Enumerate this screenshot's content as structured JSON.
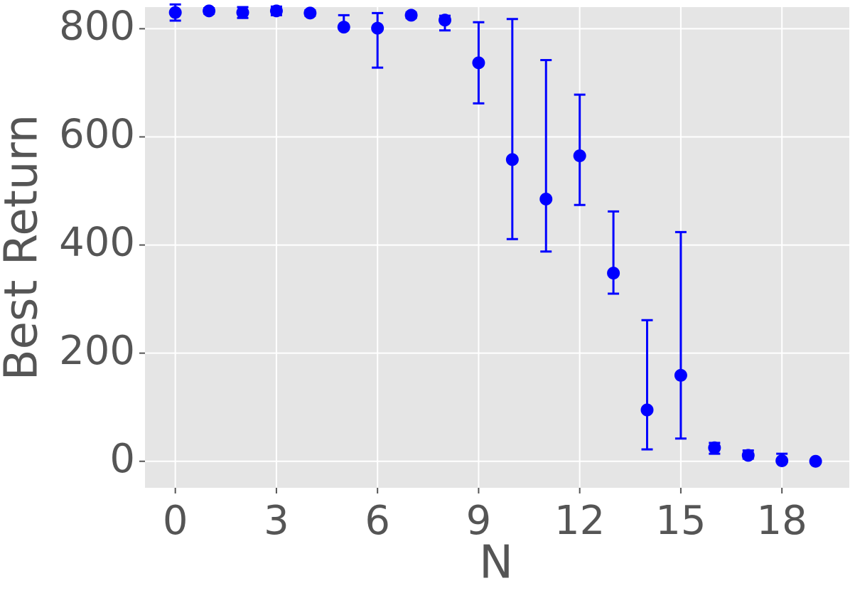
{
  "chart_data": {
    "type": "errorbar",
    "xlabel": "N",
    "ylabel": "Best Return",
    "x": [
      0,
      1,
      2,
      3,
      4,
      5,
      6,
      7,
      8,
      9,
      10,
      11,
      12,
      13,
      14,
      15,
      16,
      17,
      18,
      19
    ],
    "values": [
      830,
      833,
      830,
      833,
      829,
      803,
      801,
      825,
      816,
      737,
      558,
      485,
      565,
      348,
      95,
      159,
      25,
      11,
      1,
      0
    ],
    "error_low": [
      15,
      5,
      10,
      8,
      5,
      0,
      73,
      5,
      19,
      75,
      147,
      97,
      91,
      38,
      73,
      117,
      11,
      6,
      1,
      0
    ],
    "error_high": [
      15,
      5,
      10,
      8,
      5,
      22,
      28,
      5,
      8,
      75,
      260,
      257,
      113,
      114,
      166,
      265,
      9,
      9,
      13,
      0
    ],
    "color": "#0000ff",
    "xlim": [
      -0.9,
      20.0
    ],
    "ylim": [
      -49,
      840
    ],
    "xticks": [
      0,
      3,
      6,
      9,
      12,
      15,
      18
    ],
    "yticks": [
      0,
      200,
      400,
      600,
      800
    ],
    "grid": true
  }
}
